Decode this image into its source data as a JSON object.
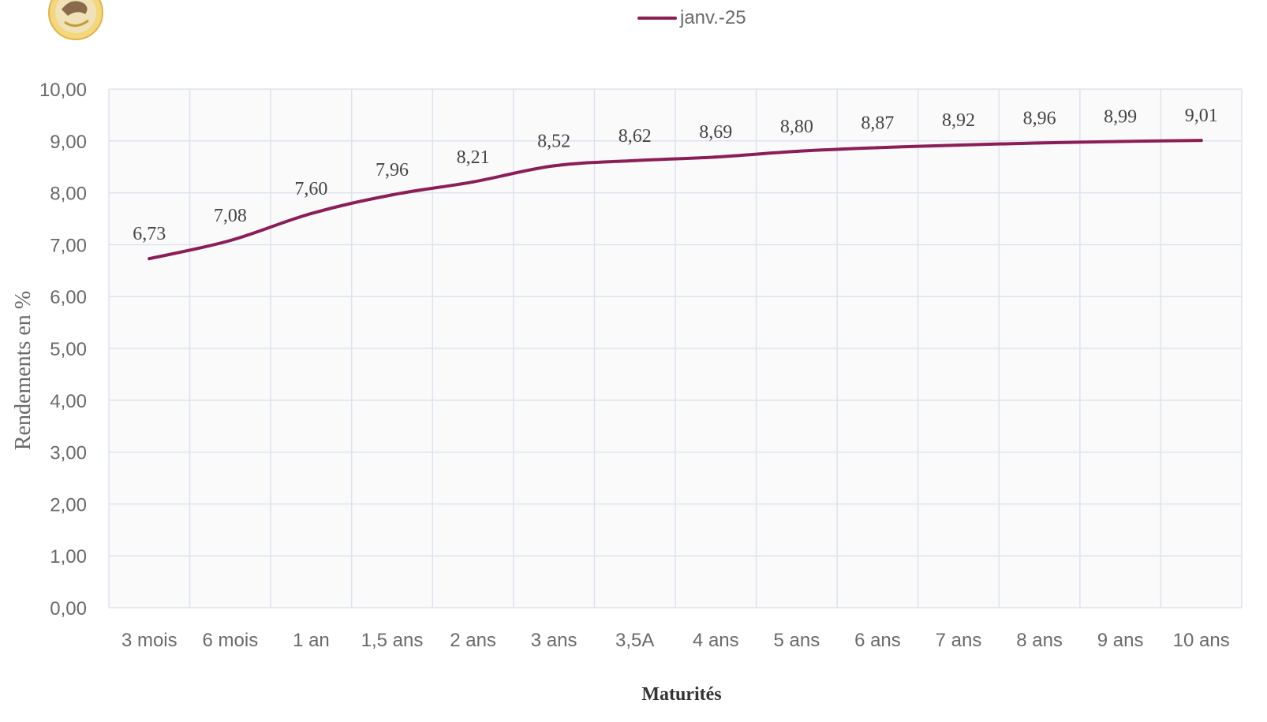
{
  "chart_data": {
    "type": "line",
    "categories": [
      "3 mois",
      "6 mois",
      "1 an",
      "1,5 ans",
      "2 ans",
      "3 ans",
      "3,5A",
      "4 ans",
      "5 ans",
      "6 ans",
      "7 ans",
      "8 ans",
      "9 ans",
      "10 ans"
    ],
    "series": [
      {
        "name": "janv.-25",
        "values": [
          6.73,
          7.08,
          7.6,
          7.96,
          8.21,
          8.52,
          8.62,
          8.69,
          8.8,
          8.87,
          8.92,
          8.96,
          8.99,
          9.01
        ],
        "labels": [
          "6,73",
          "7,08",
          "7,60",
          "7,96",
          "8,21",
          "8,52",
          "8,62",
          "8,69",
          "8,80",
          "8,87",
          "8,92",
          "8,96",
          "8,99",
          "9,01"
        ],
        "color": "#8b1e57"
      }
    ],
    "xlabel": "Maturités",
    "ylabel": "Rendements en %",
    "ylim": [
      0,
      10
    ],
    "yticks": [
      "0,00",
      "1,00",
      "2,00",
      "3,00",
      "4,00",
      "5,00",
      "6,00",
      "7,00",
      "8,00",
      "9,00",
      "10,00"
    ],
    "grid": true,
    "legend_position": "top-center"
  },
  "colors": {
    "series": "#8b1e57",
    "grid": "#dde3ee",
    "tick_text": "#6a6a6a",
    "axis_title": "#6a6a6a"
  },
  "logo": {
    "icon": "round-emblem-logo"
  }
}
